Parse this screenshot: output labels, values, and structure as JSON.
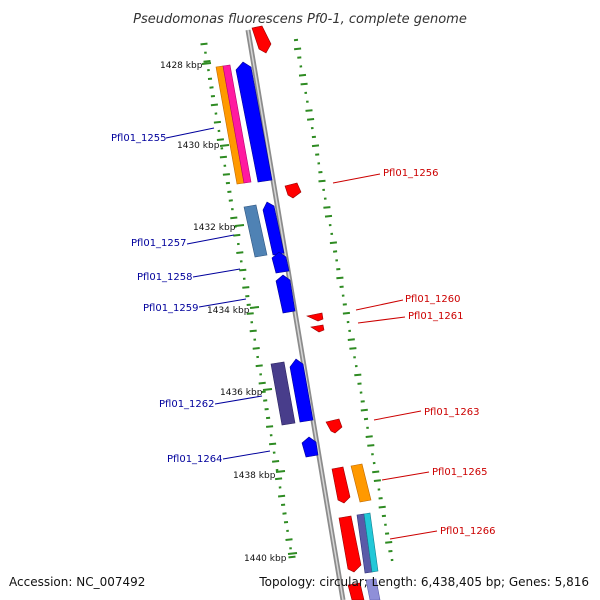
{
  "title": "Pseudomonas fluorescens Pf0-1, complete genome",
  "footer": {
    "accession": "Accession: NC_007492",
    "summary": "Topology: circular; Length: 6,438,405 bp; Genes: 5,816"
  },
  "ruler": [
    {
      "label": "1428 kbp",
      "pos": 1428
    },
    {
      "label": "1430 kbp",
      "pos": 1430
    },
    {
      "label": "1432 kbp",
      "pos": 1432
    },
    {
      "label": "1434 kbp",
      "pos": 1434
    },
    {
      "label": "1436 kbp",
      "pos": 1436
    },
    {
      "label": "1438 kbp",
      "pos": 1438
    },
    {
      "label": "1440 kbp",
      "pos": 1440
    }
  ],
  "gene_labels_left": [
    "Pfl01_1255",
    "Pfl01_1257",
    "Pfl01_1258",
    "Pfl01_1259",
    "Pfl01_1262",
    "Pfl01_1264"
  ],
  "gene_labels_right": [
    "Pfl01_1256",
    "Pfl01_1260",
    "Pfl01_1261",
    "Pfl01_1263",
    "Pfl01_1265",
    "Pfl01_1266"
  ],
  "colors": {
    "forward_cds": "#0000ff",
    "reverse_cds": "#ff0000",
    "backbone": "#8c8c8c",
    "gc_dash": "#2e8b22",
    "cog_orange": "#ff9900",
    "cog_magenta": "#ff1aa0",
    "cog_steelblue": "#4f82b4",
    "cog_purple": "#483d8b",
    "cog_cyan": "#22c8d8"
  }
}
